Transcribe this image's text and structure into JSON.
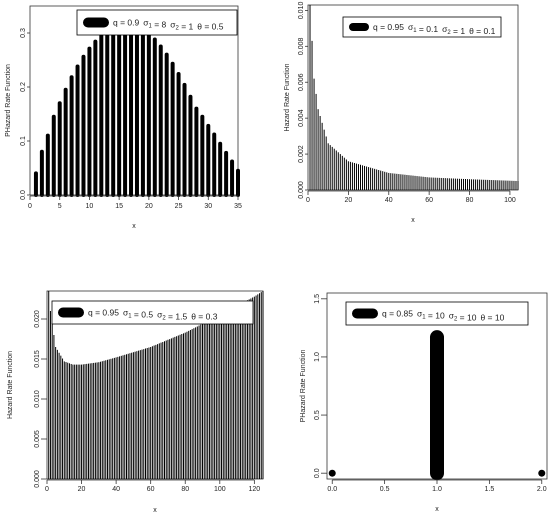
{
  "chart_data": [
    {
      "type": "bar",
      "xlabel": "x",
      "ylabel": "PHazard Rate Function",
      "xlim": [
        0,
        35
      ],
      "ylim": [
        0,
        0.35
      ],
      "xticks": [
        "0",
        "5",
        "10",
        "15",
        "20",
        "25",
        "30",
        "35"
      ],
      "yticks": [
        "0.0",
        "0.1",
        "0.2",
        "0.3"
      ],
      "legend": {
        "position": "top-center",
        "symbol_style": "big",
        "parts": [
          {
            "text": "q = 0.9",
            "sub": ""
          },
          {
            "text": "σ",
            "sub": "1"
          },
          {
            "text": " = 8",
            "sub": ""
          },
          {
            "text": "σ",
            "sub": "2"
          },
          {
            "text": " = 1",
            "sub": ""
          },
          {
            "text": "θ = 0.5",
            "sub": ""
          }
        ]
      },
      "x": [
        1,
        2,
        3,
        4,
        5,
        6,
        7,
        8,
        9,
        10,
        11,
        12,
        13,
        14,
        15,
        16,
        17,
        18,
        19,
        20,
        21,
        22,
        23,
        24,
        25,
        26,
        27,
        28,
        29,
        30,
        31,
        32,
        33,
        34,
        35
      ],
      "values": [
        0.04,
        0.08,
        0.11,
        0.145,
        0.17,
        0.195,
        0.218,
        0.238,
        0.256,
        0.271,
        0.284,
        0.295,
        0.304,
        0.311,
        0.315,
        0.317,
        0.316,
        0.313,
        0.307,
        0.299,
        0.288,
        0.275,
        0.26,
        0.243,
        0.224,
        0.204,
        0.182,
        0.16,
        0.145,
        0.128,
        0.112,
        0.095,
        0.078,
        0.062,
        0.045
      ]
    },
    {
      "type": "bar",
      "xlabel": "x",
      "ylabel": "Hazard Rate Function",
      "xlim": [
        0,
        104
      ],
      "ylim": [
        0,
        0.0103
      ],
      "xticks": [
        "0",
        "20",
        "40",
        "60",
        "80",
        "100"
      ],
      "yticks": [
        "0.000",
        "0.002",
        "0.004",
        "0.006",
        "0.008",
        "0.010"
      ],
      "legend": {
        "position": "top-left",
        "symbol_style": "small",
        "parts": [
          {
            "text": "q = 0.95",
            "sub": ""
          },
          {
            "text": "σ",
            "sub": "1"
          },
          {
            "text": " = 0.1",
            "sub": ""
          },
          {
            "text": "σ",
            "sub": "2"
          },
          {
            "text": " = 1",
            "sub": ""
          },
          {
            "text": "θ = 0.1",
            "sub": ""
          }
        ]
      },
      "x_range": [
        1,
        104
      ],
      "approx_values": {
        "1": 0.0103,
        "2": 0.0083,
        "3": 0.0062,
        "5": 0.0045,
        "10": 0.0026,
        "20": 0.0016,
        "40": 0.00095,
        "60": 0.0007,
        "80": 0.0006,
        "104": 0.0005
      }
    },
    {
      "type": "bar",
      "xlabel": "x",
      "ylabel": "Hazard Rate Function",
      "xlim": [
        0,
        125
      ],
      "ylim": [
        0,
        0.0235
      ],
      "xticks": [
        "0",
        "20",
        "40",
        "60",
        "80",
        "100",
        "120"
      ],
      "yticks": [
        "0.000",
        "0.005",
        "0.010",
        "0.015",
        "0.020"
      ],
      "legend": {
        "position": "top-left",
        "symbol_style": "big",
        "parts": [
          {
            "text": "q = 0.95",
            "sub": ""
          },
          {
            "text": "σ",
            "sub": "1"
          },
          {
            "text": " = 0.5",
            "sub": ""
          },
          {
            "text": "σ",
            "sub": "2"
          },
          {
            "text": " = 1.5",
            "sub": ""
          },
          {
            "text": "θ = 0.3",
            "sub": ""
          }
        ]
      },
      "x_range": [
        1,
        125
      ],
      "approx_values": {
        "1": 0.0235,
        "2": 0.021,
        "5": 0.0165,
        "10": 0.0147,
        "15": 0.0143,
        "20": 0.0143,
        "30": 0.0146,
        "40": 0.0152,
        "60": 0.0165,
        "80": 0.0183,
        "100": 0.0205,
        "120": 0.0228,
        "125": 0.0235
      }
    },
    {
      "type": "scatter",
      "xlabel": "x",
      "ylabel": "PHazard Rate Function",
      "xlim": [
        -0.05,
        2.05
      ],
      "ylim": [
        -0.05,
        1.55
      ],
      "xticks": [
        "0.0",
        "0.5",
        "1.0",
        "1.5",
        "2.0"
      ],
      "yticks": [
        "0.0",
        "0.5",
        "1.0",
        "1.5"
      ],
      "legend": {
        "position": "top-center",
        "symbol_style": "big",
        "parts": [
          {
            "text": "q = 0.85",
            "sub": ""
          },
          {
            "text": "σ",
            "sub": "1"
          },
          {
            "text": " = 10",
            "sub": ""
          },
          {
            "text": "σ",
            "sub": "2"
          },
          {
            "text": " = 10",
            "sub": ""
          },
          {
            "text": "θ = 10",
            "sub": ""
          }
        ]
      },
      "x": [
        0,
        1,
        2
      ],
      "values": [
        0.0,
        1.17,
        0.0
      ],
      "vertical_segment": {
        "x": 1,
        "from": 0.0,
        "to": 1.17
      }
    }
  ]
}
